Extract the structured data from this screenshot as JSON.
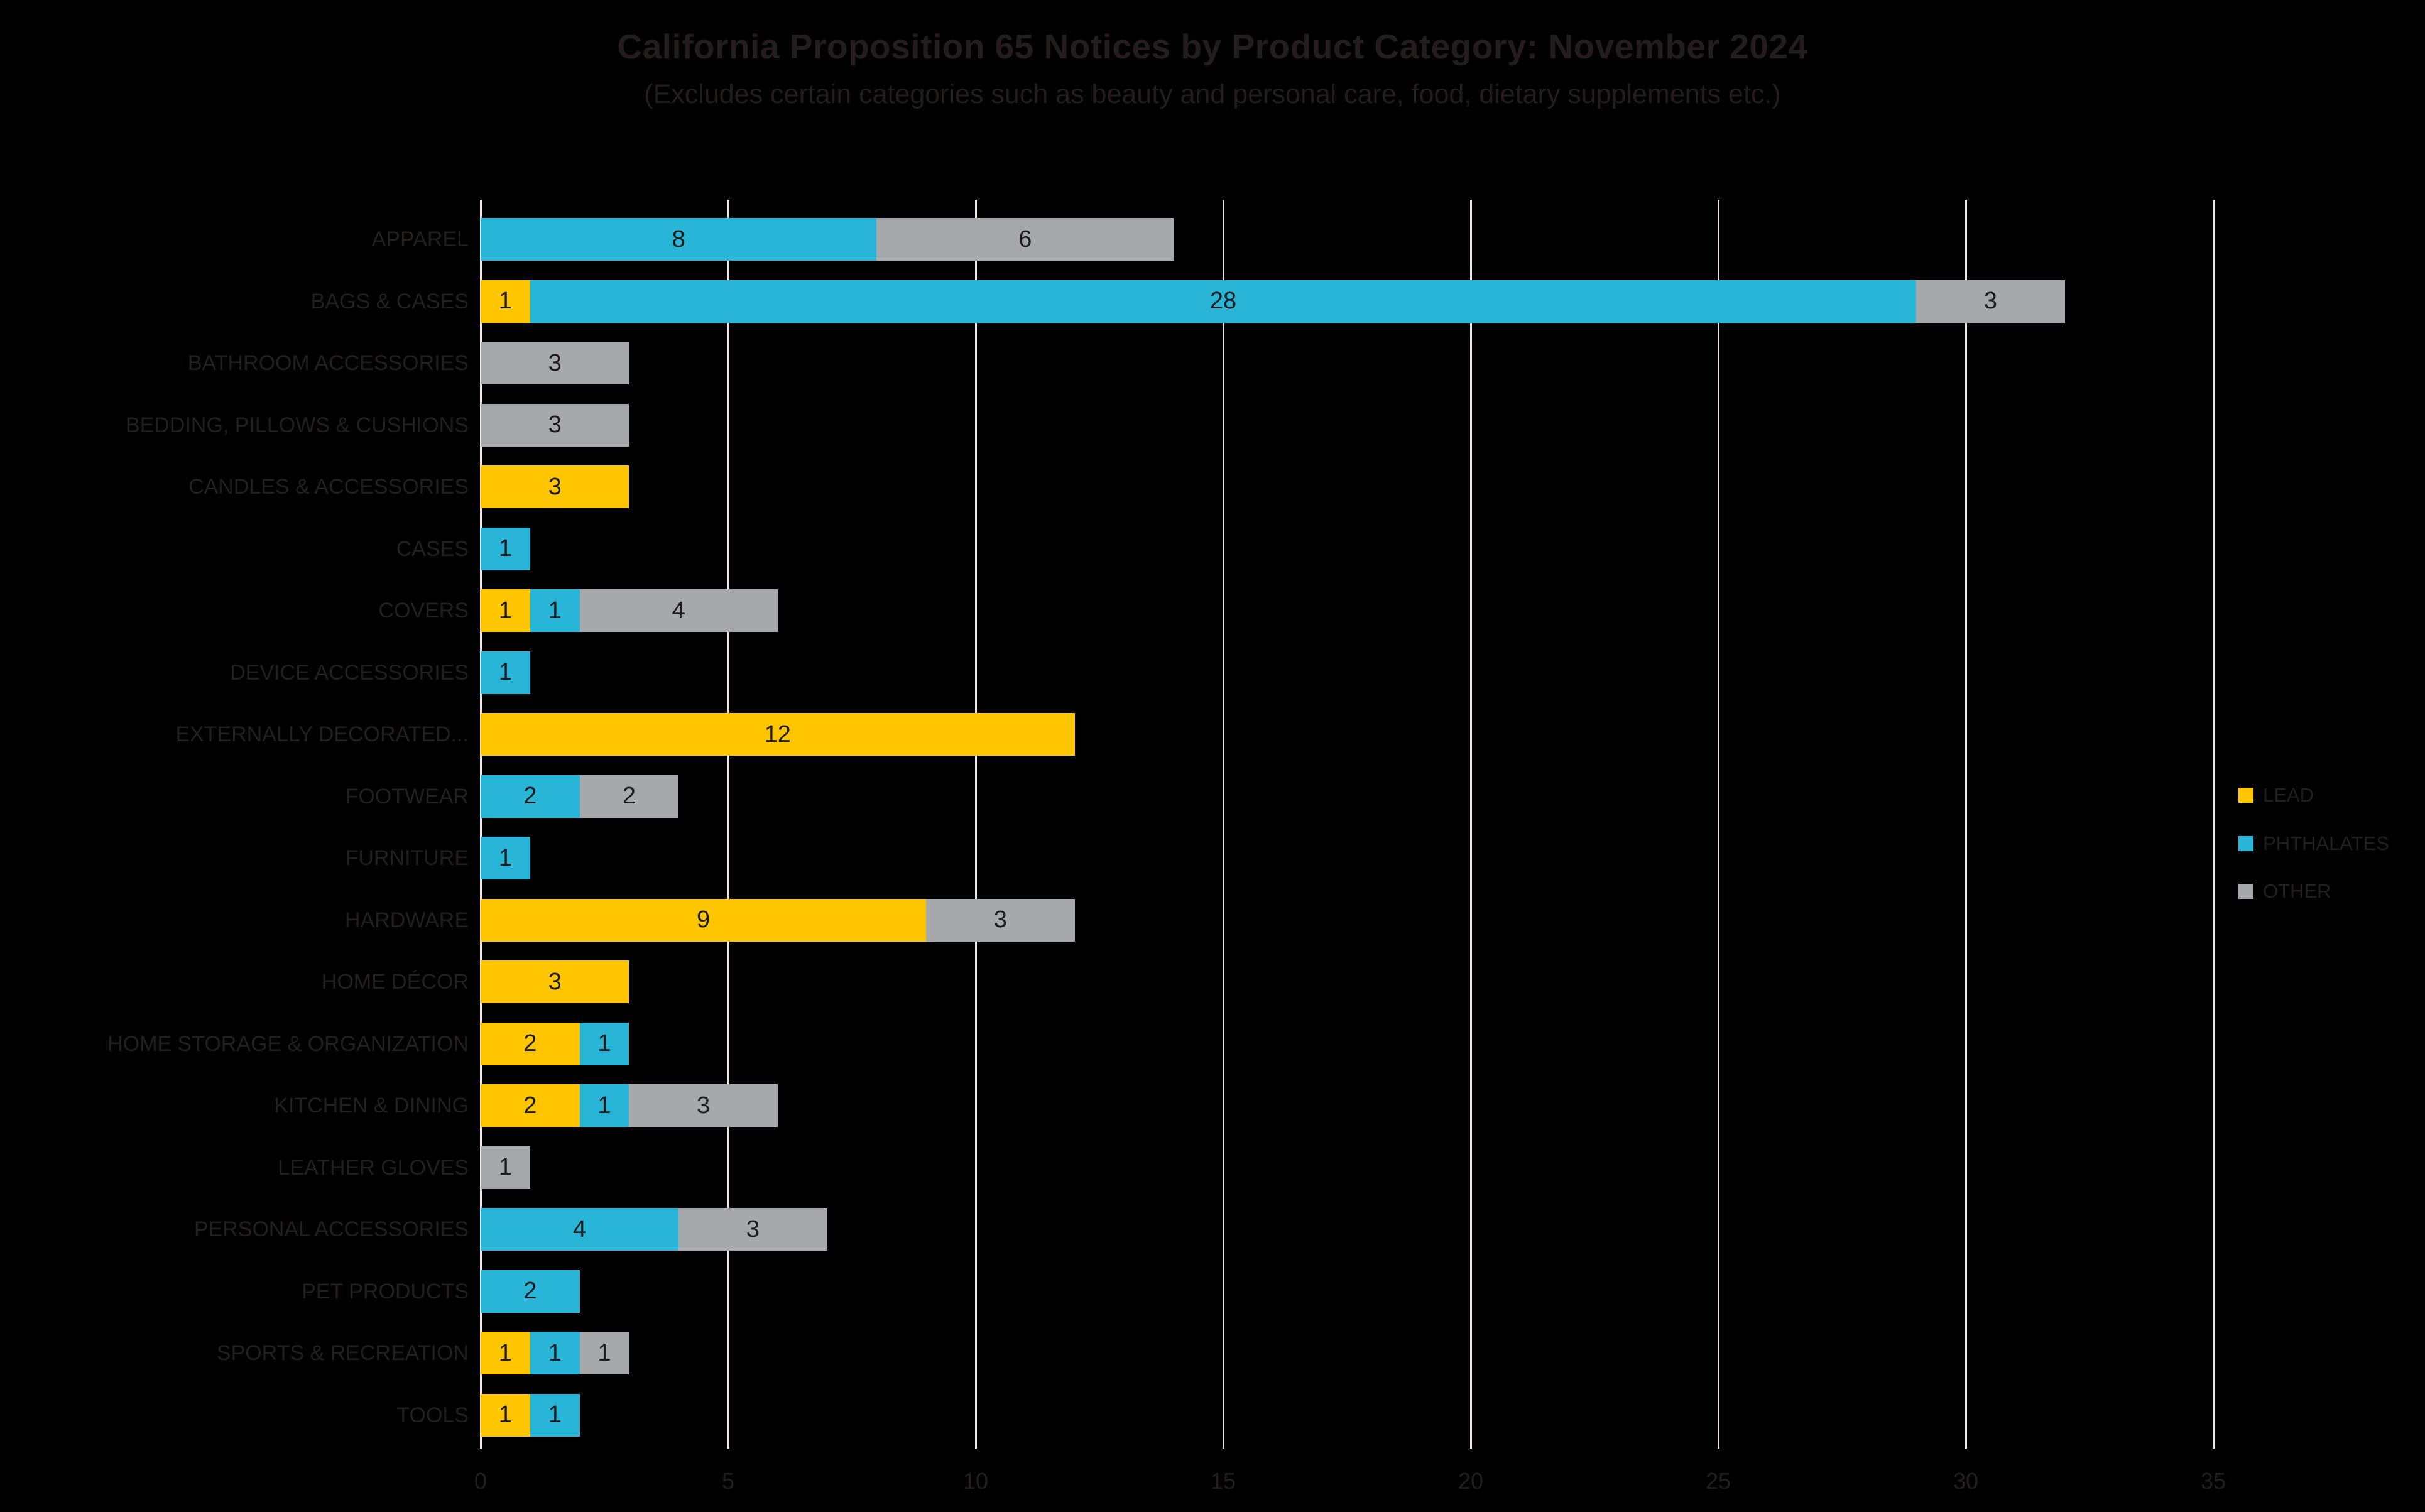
{
  "title": "California Proposition 65 Notices by Product Category: November 2024",
  "subtitle": "(Excludes certain categories such as beauty and personal care, food, dietary supplements etc.)",
  "colors": {
    "background": "#000000",
    "gridline": "#efe3e7",
    "text": "#251e1f",
    "data_label": "#1d1b1b",
    "lead": "#ffc600",
    "phthalates": "#29b5d8",
    "other": "#a6a9ac"
  },
  "chart_data": {
    "type": "bar",
    "orientation": "horizontal",
    "stacked": true,
    "title": "California Proposition 65 Notices by Product Category: November 2024",
    "subtitle": "(Excludes certain categories such as beauty and personal care, food, dietary supplements etc.)",
    "grid": true,
    "legend_position": "right",
    "data_labels": "values shown inside nonzero segments",
    "xlim": [
      0,
      35
    ],
    "x_ticks": [
      0,
      5,
      10,
      15,
      20,
      25,
      30,
      35
    ],
    "categories": [
      "APPAREL",
      "BAGS & CASES",
      "BATHROOM ACCESSORIES",
      "BEDDING, PILLOWS & CUSHIONS",
      "CANDLES & ACCESSORIES",
      "CASES",
      "COVERS",
      "DEVICE ACCESSORIES",
      "EXTERNALLY DECORATED...",
      "FOOTWEAR",
      "FURNITURE",
      "HARDWARE",
      "HOME DÉCOR",
      "HOME STORAGE & ORGANIZATION",
      "KITCHEN & DINING",
      "LEATHER GLOVES",
      "PERSONAL ACCESSORIES",
      "PET PRODUCTS",
      "SPORTS & RECREATION",
      "TOOLS"
    ],
    "series": [
      {
        "name": "LEAD",
        "color": "#ffc600",
        "values": [
          0,
          1,
          0,
          0,
          3,
          0,
          1,
          0,
          12,
          0,
          0,
          9,
          3,
          2,
          2,
          0,
          0,
          0,
          1,
          1
        ]
      },
      {
        "name": "PHTHALATES",
        "color": "#29b5d8",
        "values": [
          8,
          28,
          0,
          0,
          0,
          1,
          1,
          1,
          0,
          2,
          1,
          0,
          0,
          1,
          1,
          0,
          4,
          2,
          1,
          1
        ]
      },
      {
        "name": "OTHER",
        "color": "#a6a9ac",
        "values": [
          6,
          3,
          3,
          3,
          0,
          0,
          4,
          0,
          0,
          2,
          0,
          3,
          0,
          0,
          3,
          1,
          3,
          0,
          1,
          0
        ]
      }
    ]
  }
}
